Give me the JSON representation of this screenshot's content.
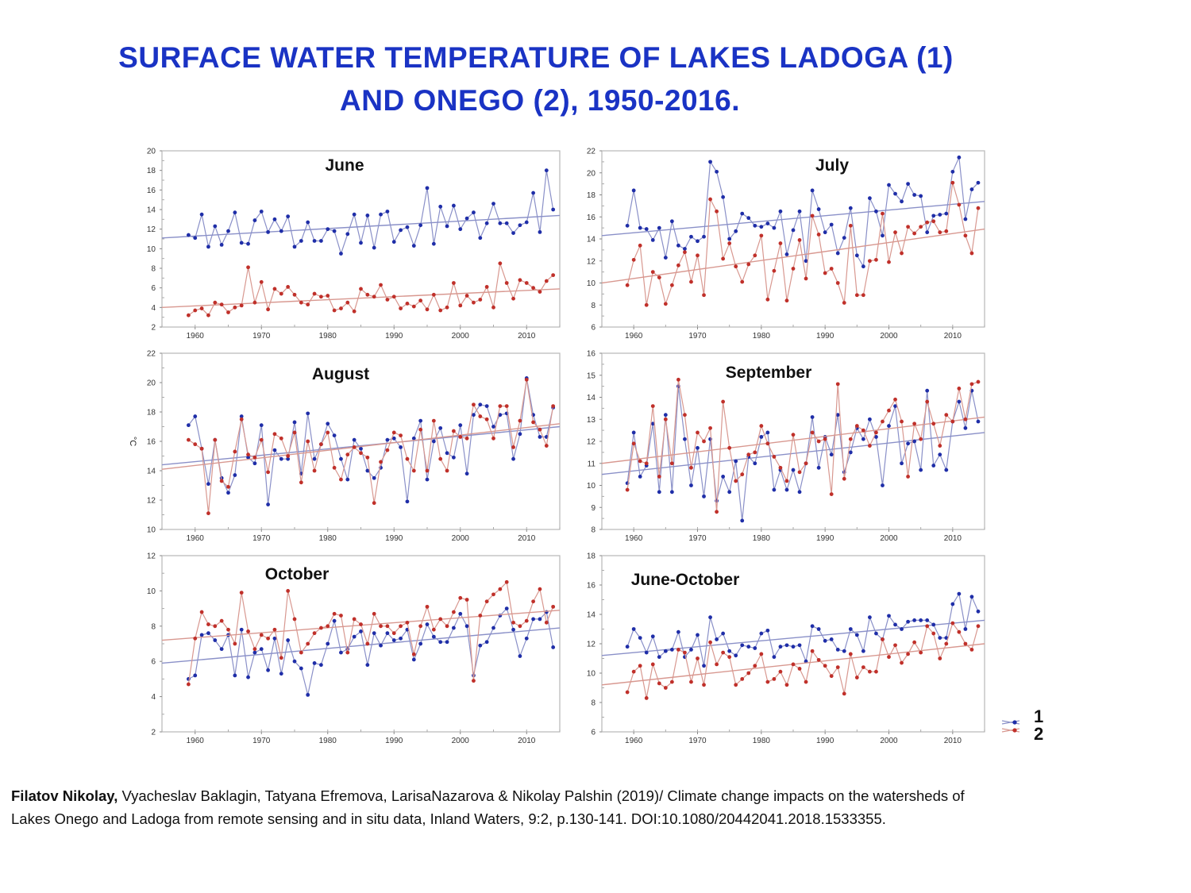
{
  "title": {
    "line1": "SURFACE  WATER  TEMPERATURE  OF  LAKES  LADOGA (1)",
    "line2": "AND  ONEGO (2), 1950-2016."
  },
  "legend": {
    "items": [
      {
        "label": "1",
        "series": "Ladoga",
        "color": "#1f2ea8"
      },
      {
        "label": "2",
        "series": "Onego",
        "color": "#c0302a"
      }
    ]
  },
  "colors": {
    "title": "#1a33c4",
    "ladoga_marker": "#1f2ea8",
    "ladoga_line": "#8a90c8",
    "onego_marker": "#c0302a",
    "onego_line": "#d89890"
  },
  "citation": {
    "author_bold": "Filatov Nikolay,",
    "line1_rest": " Vyacheslav Baklagin, Tatyana Efremova, LarisaNazarova & Nikolay Palshin (2019)/  Climate change impacts on the watersheds of",
    "line2": " Lakes Onego and Ladoga from remote sensing and in situ data, Inland Waters, 9:2, p.130-141. DOI:10.1080/20442041.2018.1533355."
  },
  "chart_data": [
    {
      "type": "line",
      "title": "June",
      "xlabel": "",
      "ylabel": "",
      "x_start": 1959,
      "x_end": 2014,
      "xlim": [
        1955,
        2015
      ],
      "ylim": [
        2,
        20
      ],
      "yticks": [
        2,
        4,
        6,
        8,
        10,
        12,
        14,
        16,
        18,
        20
      ],
      "xticks": [
        1960,
        1970,
        1980,
        1990,
        2000,
        2010
      ],
      "series": [
        {
          "name": "1",
          "values": [
            11.4,
            11.1,
            13.5,
            10.2,
            12.3,
            10.4,
            11.8,
            13.7,
            10.6,
            10.5,
            12.9,
            13.8,
            11.7,
            13.0,
            11.8,
            13.3,
            10.2,
            10.8,
            12.7,
            10.8,
            10.8,
            12.0,
            11.8,
            9.5,
            11.5,
            13.5,
            10.6,
            13.4,
            10.1,
            13.5,
            13.8,
            10.7,
            11.9,
            12.2,
            10.3,
            12.4,
            16.2,
            10.5,
            14.3,
            12.3,
            14.4,
            12.0,
            13.1,
            13.7,
            11.1,
            12.6,
            14.6,
            12.6,
            12.6,
            11.6,
            12.4,
            12.7,
            15.7,
            11.7,
            18.0,
            14.0
          ],
          "trend": [
            11.1,
            13.4
          ]
        },
        {
          "name": "2",
          "values": [
            3.2,
            3.7,
            3.9,
            3.2,
            4.5,
            4.3,
            3.5,
            4.0,
            4.2,
            8.1,
            4.5,
            6.6,
            3.8,
            5.9,
            5.4,
            6.1,
            5.3,
            4.5,
            4.3,
            5.4,
            5.1,
            5.2,
            3.7,
            3.9,
            4.5,
            3.6,
            5.9,
            5.3,
            5.1,
            6.3,
            4.8,
            5.1,
            3.9,
            4.4,
            4.1,
            4.7,
            3.8,
            5.3,
            3.7,
            4.0,
            6.5,
            4.2,
            5.2,
            4.5,
            4.8,
            6.1,
            4.0,
            8.5,
            6.5,
            4.9,
            6.8,
            6.5,
            6.0,
            5.6,
            6.7,
            7.3
          ],
          "trend": [
            4.0,
            5.9
          ]
        }
      ]
    },
    {
      "type": "line",
      "title": "July",
      "xlabel": "",
      "ylabel": "",
      "x_start": 1959,
      "x_end": 2014,
      "xlim": [
        1955,
        2015
      ],
      "ylim": [
        6,
        22
      ],
      "yticks": [
        6,
        8,
        10,
        12,
        14,
        16,
        18,
        20,
        22
      ],
      "xticks": [
        1960,
        1970,
        1980,
        1990,
        2000,
        2010
      ],
      "series": [
        {
          "name": "1",
          "values": [
            15.2,
            18.4,
            15.0,
            14.9,
            13.9,
            15.0,
            12.3,
            15.6,
            13.4,
            13.1,
            14.2,
            13.8,
            14.2,
            21.0,
            20.1,
            17.8,
            14.0,
            14.7,
            16.3,
            15.9,
            15.2,
            15.1,
            15.4,
            15.0,
            16.5,
            12.6,
            14.8,
            16.5,
            12.0,
            18.4,
            16.7,
            14.6,
            15.3,
            12.7,
            14.1,
            16.8,
            12.5,
            11.5,
            17.7,
            16.5,
            14.3,
            18.9,
            18.1,
            17.4,
            19.0,
            18.0,
            17.9,
            14.6,
            16.1,
            16.2,
            16.3,
            20.1,
            21.4,
            15.8,
            18.5,
            19.1
          ],
          "trend": [
            14.3,
            17.4
          ]
        },
        {
          "name": "2",
          "values": [
            9.8,
            12.1,
            13.4,
            8.0,
            11.0,
            10.5,
            8.1,
            9.8,
            11.6,
            12.8,
            10.1,
            12.5,
            8.9,
            17.6,
            16.5,
            12.2,
            13.6,
            11.5,
            10.1,
            11.7,
            12.5,
            14.3,
            8.5,
            11.1,
            13.6,
            8.4,
            11.3,
            13.9,
            10.4,
            16.1,
            14.4,
            10.9,
            11.3,
            10.0,
            8.2,
            15.2,
            8.9,
            8.9,
            12.0,
            12.1,
            16.3,
            11.9,
            14.6,
            12.7,
            15.1,
            14.5,
            15.1,
            15.5,
            15.6,
            14.6,
            14.7,
            19.1,
            17.1,
            14.3,
            12.7,
            16.8
          ],
          "trend": [
            10.0,
            14.9
          ]
        }
      ]
    },
    {
      "type": "line",
      "title": "August",
      "xlabel": "",
      "ylabel": "°C",
      "x_start": 1959,
      "x_end": 2014,
      "xlim": [
        1955,
        2015
      ],
      "ylim": [
        10,
        22
      ],
      "yticks": [
        10,
        12,
        14,
        16,
        18,
        20,
        22
      ],
      "xticks": [
        1960,
        1970,
        1980,
        1990,
        2000,
        2010
      ],
      "series": [
        {
          "name": "1",
          "values": [
            17.1,
            17.7,
            15.5,
            13.1,
            16.1,
            13.5,
            12.5,
            13.7,
            17.7,
            14.9,
            14.5,
            17.1,
            11.7,
            15.4,
            14.8,
            14.8,
            17.3,
            13.8,
            17.9,
            14.8,
            15.8,
            17.2,
            16.4,
            14.8,
            13.4,
            16.1,
            15.5,
            14.0,
            13.5,
            14.2,
            16.1,
            16.2,
            15.6,
            11.9,
            16.2,
            17.4,
            13.4,
            16.0,
            16.9,
            15.2,
            14.9,
            17.1,
            13.8,
            17.8,
            18.5,
            18.4,
            17.0,
            17.8,
            17.9,
            14.8,
            16.5,
            20.3,
            17.8,
            16.3,
            16.3,
            18.3
          ],
          "trend": [
            14.4,
            17.0
          ]
        },
        {
          "name": "2",
          "values": [
            16.1,
            15.8,
            15.5,
            11.1,
            16.1,
            13.3,
            12.9,
            15.3,
            17.5,
            15.1,
            14.9,
            16.1,
            13.9,
            16.5,
            16.2,
            15.0,
            16.6,
            13.2,
            16.0,
            14.0,
            15.8,
            16.6,
            14.2,
            13.4,
            15.1,
            15.6,
            15.2,
            14.9,
            11.8,
            14.6,
            15.4,
            16.6,
            16.4,
            14.8,
            14.0,
            16.8,
            14.0,
            17.4,
            14.8,
            14.0,
            16.7,
            16.3,
            16.2,
            18.5,
            17.7,
            17.5,
            16.2,
            18.4,
            18.4,
            15.6,
            17.4,
            20.2,
            17.3,
            16.8,
            15.7,
            18.4
          ],
          "trend": [
            14.1,
            17.2
          ]
        }
      ]
    },
    {
      "type": "line",
      "title": "September",
      "xlabel": "",
      "ylabel": "",
      "x_start": 1959,
      "x_end": 2014,
      "xlim": [
        1955,
        2015
      ],
      "ylim": [
        8,
        16
      ],
      "yticks": [
        8,
        9,
        10,
        11,
        12,
        13,
        14,
        15,
        16
      ],
      "xticks": [
        1960,
        1970,
        1980,
        1990,
        2000,
        2010
      ],
      "series": [
        {
          "name": "1",
          "values": [
            10.1,
            12.4,
            10.4,
            10.9,
            12.8,
            9.7,
            13.2,
            9.7,
            14.5,
            12.1,
            10.0,
            11.7,
            9.5,
            12.1,
            9.3,
            10.4,
            9.7,
            11.1,
            8.4,
            11.3,
            11.0,
            12.2,
            12.4,
            9.8,
            10.7,
            9.8,
            10.7,
            9.7,
            11.0,
            13.1,
            10.8,
            12.2,
            11.4,
            13.2,
            10.6,
            11.5,
            12.6,
            12.1,
            13.0,
            12.2,
            10.0,
            12.7,
            13.6,
            11.0,
            11.9,
            12.0,
            10.7,
            14.3,
            10.9,
            11.4,
            10.7,
            12.9,
            13.8,
            12.6,
            14.3,
            12.9
          ],
          "trend": [
            10.5,
            12.4
          ]
        },
        {
          "name": "2",
          "values": [
            9.8,
            11.9,
            11.1,
            11.0,
            13.6,
            10.4,
            13.0,
            11.0,
            14.8,
            13.2,
            10.8,
            12.4,
            12.0,
            12.6,
            8.8,
            13.8,
            11.7,
            10.2,
            10.5,
            11.4,
            11.5,
            12.7,
            11.9,
            11.3,
            10.8,
            10.2,
            12.3,
            10.6,
            11.0,
            12.4,
            12.0,
            12.1,
            9.6,
            14.6,
            10.3,
            12.1,
            12.7,
            12.5,
            11.8,
            12.4,
            12.9,
            13.4,
            13.9,
            12.9,
            10.4,
            12.8,
            12.1,
            13.8,
            12.8,
            11.8,
            13.2,
            12.9,
            14.4,
            13.0,
            14.6,
            14.7
          ],
          "trend": [
            11.0,
            13.1
          ]
        }
      ]
    },
    {
      "type": "line",
      "title": "October",
      "xlabel": "",
      "ylabel": "",
      "x_start": 1959,
      "x_end": 2014,
      "xlim": [
        1955,
        2015
      ],
      "ylim": [
        2,
        12
      ],
      "yticks": [
        2,
        4,
        6,
        8,
        10,
        12
      ],
      "xticks": [
        1960,
        1970,
        1980,
        1990,
        2000,
        2010
      ],
      "series": [
        {
          "name": "1",
          "values": [
            5.0,
            5.2,
            7.5,
            7.6,
            7.2,
            6.7,
            7.5,
            5.2,
            7.8,
            5.1,
            6.5,
            6.7,
            5.5,
            7.3,
            5.3,
            7.2,
            6.0,
            5.6,
            4.1,
            5.9,
            5.8,
            7.0,
            8.3,
            6.5,
            6.7,
            7.4,
            7.7,
            5.8,
            7.6,
            6.9,
            7.6,
            7.2,
            7.3,
            7.8,
            6.1,
            7.0,
            8.1,
            7.4,
            7.1,
            7.1,
            7.9,
            8.7,
            8.0,
            5.2,
            6.9,
            7.1,
            7.9,
            8.6,
            9.0,
            7.8,
            6.3,
            7.3,
            8.4,
            8.4,
            8.8,
            6.8
          ],
          "trend": [
            5.9,
            7.9
          ]
        },
        {
          "name": "2",
          "values": [
            4.7,
            7.3,
            8.8,
            8.1,
            8.0,
            8.3,
            7.8,
            7.0,
            9.9,
            7.7,
            6.7,
            7.5,
            7.3,
            7.8,
            6.2,
            10.0,
            8.4,
            6.5,
            7.0,
            7.6,
            7.9,
            8.0,
            8.7,
            8.6,
            6.5,
            8.4,
            8.1,
            7.0,
            8.7,
            8.0,
            8.0,
            7.6,
            8.0,
            8.2,
            6.4,
            8.0,
            9.1,
            7.8,
            8.4,
            8.0,
            8.8,
            9.6,
            9.5,
            4.9,
            8.6,
            9.4,
            9.8,
            10.1,
            10.5,
            8.2,
            8.0,
            8.3,
            9.4,
            10.1,
            8.2,
            9.1
          ],
          "trend": [
            7.2,
            8.9
          ]
        }
      ]
    },
    {
      "type": "line",
      "title": "June-October",
      "xlabel": "",
      "ylabel": "",
      "x_start": 1959,
      "x_end": 2014,
      "xlim": [
        1955,
        2015
      ],
      "ylim": [
        6,
        18
      ],
      "yticks": [
        6,
        8,
        10,
        12,
        14,
        16,
        18
      ],
      "xticks": [
        1960,
        1970,
        1980,
        1990,
        2000,
        2010
      ],
      "legend": "bottom-right",
      "series": [
        {
          "name": "1",
          "values": [
            11.8,
            13.0,
            12.4,
            11.4,
            12.5,
            11.1,
            11.5,
            11.6,
            12.8,
            11.1,
            11.6,
            12.6,
            10.5,
            13.8,
            12.3,
            12.7,
            11.5,
            11.2,
            11.9,
            11.8,
            11.7,
            12.7,
            12.9,
            11.1,
            11.8,
            11.9,
            11.8,
            11.9,
            10.8,
            13.2,
            13.0,
            12.2,
            12.3,
            11.6,
            11.5,
            13.0,
            12.6,
            11.5,
            13.8,
            12.7,
            12.3,
            13.9,
            13.3,
            13.0,
            13.5,
            13.6,
            13.6,
            13.6,
            13.3,
            12.4,
            12.4,
            14.7,
            15.4,
            13.0,
            15.2,
            14.2
          ],
          "trend": [
            11.2,
            13.6
          ]
        },
        {
          "name": "2",
          "values": [
            8.7,
            10.1,
            10.5,
            8.3,
            10.6,
            9.3,
            9.0,
            9.4,
            11.6,
            11.4,
            9.4,
            11.0,
            9.2,
            12.1,
            10.6,
            11.4,
            11.1,
            9.2,
            9.6,
            10.0,
            10.5,
            11.3,
            9.4,
            9.6,
            10.1,
            9.2,
            10.6,
            10.3,
            9.4,
            11.5,
            10.9,
            10.5,
            9.8,
            10.4,
            8.6,
            11.3,
            9.7,
            10.4,
            10.1,
            10.1,
            12.3,
            11.1,
            11.9,
            10.7,
            11.3,
            12.1,
            11.4,
            13.2,
            12.7,
            11.0,
            12.0,
            13.4,
            12.8,
            12.0,
            11.6,
            13.2
          ],
          "trend": [
            9.2,
            12.0
          ]
        }
      ]
    }
  ]
}
